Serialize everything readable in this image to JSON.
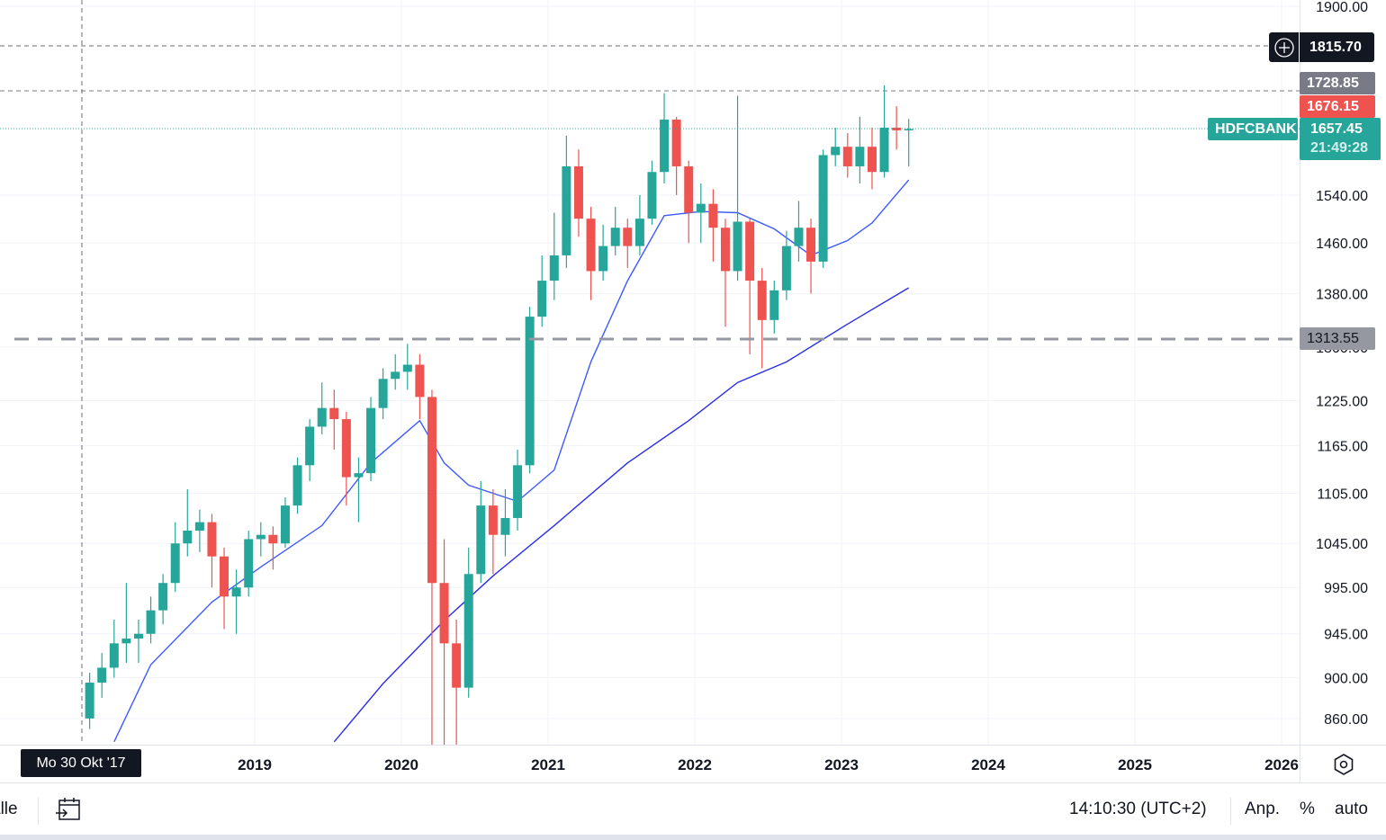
{
  "chart_data": {
    "type": "candlestick",
    "symbol": "HDFCBANK",
    "y_scale": "log",
    "ylim": [
      830,
      1920
    ],
    "xlim": [
      "2017-08",
      "2026-03"
    ],
    "grid": true,
    "y_ticks": [
      "1900.00",
      "1540.00",
      "1460.00",
      "1380.00",
      "1300.00",
      "1225.00",
      "1165.00",
      "1105.00",
      "1045.00",
      "995.00",
      "945.00",
      "900.00",
      "860.00"
    ],
    "x_ticks": [
      "2019",
      "2020",
      "2021",
      "2022",
      "2023",
      "2024",
      "2025",
      "2026"
    ],
    "candles_ohlc": [
      [
        "2017-11",
        860,
        905,
        850,
        895
      ],
      [
        "2017-12",
        895,
        925,
        880,
        910
      ],
      [
        "2018-01",
        910,
        960,
        900,
        935
      ],
      [
        "2018-02",
        935,
        1000,
        915,
        940
      ],
      [
        "2018-03",
        940,
        960,
        915,
        945
      ],
      [
        "2018-04",
        945,
        985,
        935,
        970
      ],
      [
        "2018-05",
        970,
        1010,
        955,
        1000
      ],
      [
        "2018-06",
        1000,
        1070,
        990,
        1045
      ],
      [
        "2018-07",
        1045,
        1110,
        1030,
        1060
      ],
      [
        "2018-08",
        1060,
        1085,
        1035,
        1070
      ],
      [
        "2018-09",
        1070,
        1080,
        995,
        1030
      ],
      [
        "2018-10",
        1030,
        1040,
        950,
        985
      ],
      [
        "2018-11",
        985,
        1015,
        945,
        995
      ],
      [
        "2018-12",
        995,
        1060,
        985,
        1050
      ],
      [
        "2019-01",
        1050,
        1070,
        1030,
        1055
      ],
      [
        "2019-02",
        1055,
        1065,
        1015,
        1045
      ],
      [
        "2019-03",
        1045,
        1100,
        1040,
        1090
      ],
      [
        "2019-04",
        1090,
        1150,
        1080,
        1140
      ],
      [
        "2019-05",
        1140,
        1200,
        1120,
        1190
      ],
      [
        "2019-06",
        1190,
        1250,
        1180,
        1215
      ],
      [
        "2019-07",
        1215,
        1240,
        1160,
        1200
      ],
      [
        "2019-08",
        1200,
        1210,
        1090,
        1125
      ],
      [
        "2019-09",
        1125,
        1150,
        1070,
        1130
      ],
      [
        "2019-10",
        1130,
        1230,
        1120,
        1215
      ],
      [
        "2019-11",
        1215,
        1270,
        1200,
        1255
      ],
      [
        "2019-12",
        1255,
        1290,
        1240,
        1265
      ],
      [
        "2020-01",
        1265,
        1305,
        1240,
        1275
      ],
      [
        "2020-02",
        1275,
        1290,
        1200,
        1230
      ],
      [
        "2020-03",
        1230,
        1240,
        820,
        1000
      ],
      [
        "2020-04",
        1000,
        1050,
        830,
        935
      ],
      [
        "2020-05",
        935,
        960,
        830,
        890
      ],
      [
        "2020-06",
        890,
        1040,
        880,
        1010
      ],
      [
        "2020-07",
        1010,
        1120,
        1000,
        1090
      ],
      [
        "2020-08",
        1090,
        1110,
        1010,
        1055
      ],
      [
        "2020-09",
        1055,
        1110,
        1030,
        1075
      ],
      [
        "2020-10",
        1075,
        1160,
        1060,
        1140
      ],
      [
        "2020-11",
        1140,
        1360,
        1130,
        1345
      ],
      [
        "2020-12",
        1345,
        1440,
        1330,
        1400
      ],
      [
        "2021-01",
        1400,
        1510,
        1370,
        1440
      ],
      [
        "2021-02",
        1440,
        1645,
        1420,
        1590
      ],
      [
        "2021-03",
        1590,
        1620,
        1470,
        1500
      ],
      [
        "2021-04",
        1500,
        1520,
        1370,
        1415
      ],
      [
        "2021-05",
        1415,
        1490,
        1400,
        1455
      ],
      [
        "2021-06",
        1455,
        1520,
        1440,
        1485
      ],
      [
        "2021-07",
        1485,
        1500,
        1420,
        1455
      ],
      [
        "2021-08",
        1455,
        1540,
        1440,
        1500
      ],
      [
        "2021-09",
        1500,
        1600,
        1490,
        1580
      ],
      [
        "2021-10",
        1580,
        1725,
        1560,
        1675
      ],
      [
        "2021-11",
        1675,
        1680,
        1540,
        1590
      ],
      [
        "2021-12",
        1590,
        1600,
        1460,
        1510
      ],
      [
        "2022-01",
        1510,
        1560,
        1460,
        1525
      ],
      [
        "2022-02",
        1525,
        1550,
        1430,
        1485
      ],
      [
        "2022-03",
        1485,
        1500,
        1330,
        1415
      ],
      [
        "2022-04",
        1415,
        1720,
        1400,
        1495
      ],
      [
        "2022-05",
        1495,
        1500,
        1290,
        1400
      ],
      [
        "2022-06",
        1400,
        1420,
        1270,
        1340
      ],
      [
        "2022-07",
        1340,
        1400,
        1320,
        1385
      ],
      [
        "2022-08",
        1385,
        1480,
        1370,
        1455
      ],
      [
        "2022-09",
        1455,
        1530,
        1430,
        1485
      ],
      [
        "2022-10",
        1485,
        1500,
        1380,
        1430
      ],
      [
        "2022-11",
        1430,
        1620,
        1420,
        1610
      ],
      [
        "2022-12",
        1610,
        1660,
        1590,
        1625
      ],
      [
        "2023-01",
        1625,
        1650,
        1570,
        1590
      ],
      [
        "2023-02",
        1590,
        1680,
        1560,
        1625
      ],
      [
        "2023-03",
        1625,
        1660,
        1550,
        1580
      ],
      [
        "2023-04",
        1580,
        1740,
        1570,
        1660
      ],
      [
        "2023-05",
        1660,
        1700,
        1620,
        1655
      ],
      [
        "2023-06",
        1655,
        1676,
        1590,
        1657.45
      ]
    ],
    "moving_averages": [
      {
        "color": "#3d5afe",
        "points": [
          [
            "2018-01",
            838
          ],
          [
            "2018-04",
            913
          ],
          [
            "2018-09",
            979
          ],
          [
            "2019-01",
            1018
          ],
          [
            "2019-06",
            1066
          ],
          [
            "2019-10",
            1143
          ],
          [
            "2020-02",
            1198
          ],
          [
            "2020-04",
            1143
          ],
          [
            "2020-06",
            1115
          ],
          [
            "2020-10",
            1095
          ],
          [
            "2021-01",
            1134
          ],
          [
            "2021-04",
            1279
          ],
          [
            "2021-07",
            1400
          ],
          [
            "2021-10",
            1505
          ],
          [
            "2022-01",
            1512
          ],
          [
            "2022-04",
            1510
          ],
          [
            "2022-07",
            1483
          ],
          [
            "2022-10",
            1440
          ],
          [
            "2023-01",
            1464
          ],
          [
            "2023-03",
            1493
          ],
          [
            "2023-06",
            1566
          ]
        ]
      },
      {
        "color": "#2a2ee6",
        "points": [
          [
            "2019-07",
            838
          ],
          [
            "2019-11",
            894
          ],
          [
            "2020-04",
            959
          ],
          [
            "2020-08",
            1008
          ],
          [
            "2021-01",
            1066
          ],
          [
            "2021-07",
            1143
          ],
          [
            "2021-12",
            1198
          ],
          [
            "2022-04",
            1250
          ],
          [
            "2022-08",
            1279
          ],
          [
            "2023-01",
            1334
          ],
          [
            "2023-06",
            1389
          ]
        ]
      }
    ],
    "colors": {
      "up": "#26a69a",
      "down": "#ef5350",
      "grid": "#f0f3fa"
    }
  },
  "price_labels": {
    "crosshair_price": "1815.70",
    "high_line": "1728.85",
    "open_price": "1676.15",
    "symbol": "HDFCBANK",
    "last_price": "1657.45",
    "countdown": "21:49:28",
    "alert_line": "1313.55"
  },
  "crosshair_date": "Mo 30 Okt '17",
  "toolbar": {
    "range_label": "alle",
    "time": "14:10:30 (UTC+2)",
    "adjust": "Anp.",
    "percent": "%",
    "auto": "auto"
  }
}
